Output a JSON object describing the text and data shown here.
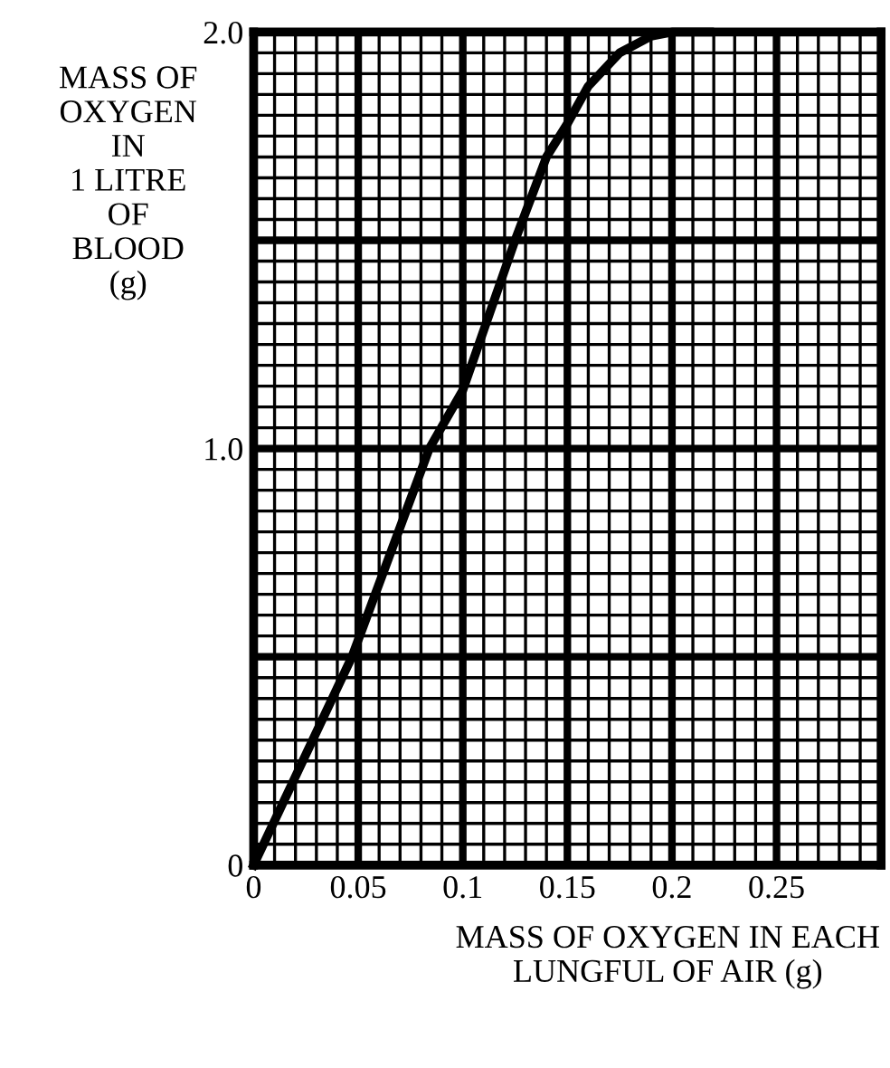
{
  "chart_data": {
    "type": "line",
    "xlabel": "MASS OF OXYGEN IN EACH\nLUNGFUL OF AIR (g)",
    "ylabel": "MASS OF\nOXYGEN\nIN\n1 LITRE\nOF\nBLOOD\n(g)",
    "x": [
      0,
      0.047,
      0.084,
      0.1,
      0.125,
      0.14,
      0.15,
      0.16,
      0.175,
      0.19,
      0.2,
      0.218
    ],
    "series": [
      {
        "color": "#000000",
        "values": [
          0,
          0.5,
          1.0,
          1.14,
          1.5,
          1.7,
          1.78,
          1.87,
          1.95,
          1.99,
          2.0,
          2.0
        ]
      }
    ],
    "xlim": [
      0,
      0.3
    ],
    "ylim": [
      0,
      2.0
    ],
    "xticks": [
      0,
      0.05,
      0.1,
      0.15,
      0.2,
      0.25
    ],
    "yticks": [
      0,
      {
        "value": 0.5,
        "label": null
      },
      {
        "value": 1.0,
        "label": "1.0"
      },
      {
        "value": 1.5,
        "label": null
      },
      {
        "value": 2.0,
        "label": "2.0"
      }
    ],
    "grid": true,
    "marker": "none",
    "line_style": "solid"
  }
}
